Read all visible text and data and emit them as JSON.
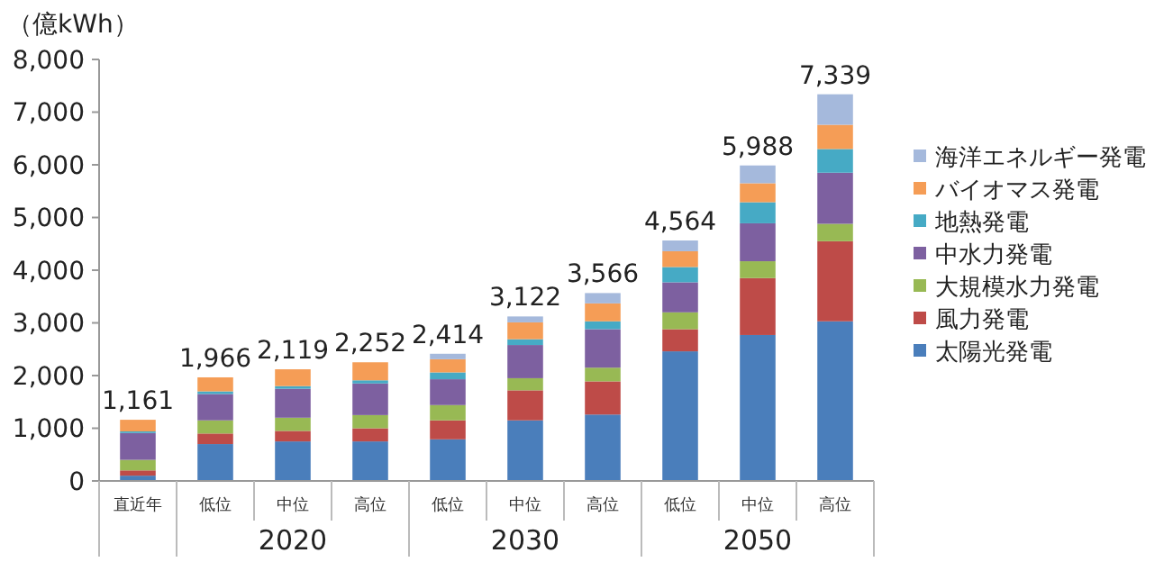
{
  "chart_data": {
    "type": "bar",
    "stacked": true,
    "ylabel": "（億kWh）",
    "categories": [
      "直近年",
      "低位",
      "中位",
      "高位",
      "低位",
      "中位",
      "高位",
      "低位",
      "中位",
      "高位"
    ],
    "series": [
      {
        "name": "太陽光発電",
        "color": "#4a7ebb",
        "values": [
          100,
          700,
          750,
          750,
          790,
          1150,
          1260,
          2460,
          2770,
          3030
        ]
      },
      {
        "name": "風力発電",
        "color": "#be4b48",
        "values": [
          100,
          200,
          200,
          250,
          360,
          570,
          630,
          420,
          1080,
          1520
        ]
      },
      {
        "name": "大規模水力発電",
        "color": "#98b954",
        "values": [
          200,
          250,
          250,
          250,
          290,
          230,
          260,
          320,
          320,
          330
        ]
      },
      {
        "name": "中水力発電",
        "color": "#7d60a0",
        "values": [
          510,
          500,
          550,
          600,
          490,
          630,
          730,
          570,
          720,
          970
        ]
      },
      {
        "name": "地熱発電",
        "color": "#46aac5",
        "values": [
          30,
          50,
          50,
          60,
          130,
          110,
          150,
          290,
          400,
          450
        ]
      },
      {
        "name": "バイオマス発電",
        "color": "#f59d56",
        "values": [
          221,
          266,
          319,
          342,
          250,
          320,
          340,
          300,
          360,
          460
        ]
      },
      {
        "name": "海洋エネルギー発電",
        "color": "#a5b9dc",
        "values": [
          0,
          null,
          null,
          null,
          104,
          112,
          196,
          204,
          338,
          579
        ]
      }
    ],
    "totals": [
      "1,161",
      "1,966",
      "2,119",
      "2,252",
      "2,414",
      "3,122",
      "3,566",
      "4,564",
      "5,988",
      "7,339"
    ],
    "ylim": [
      0,
      8000
    ],
    "yticks": [
      {
        "value": 0,
        "label": "0"
      },
      {
        "value": 1000,
        "label": "1,000"
      },
      {
        "value": 2000,
        "label": "2,000"
      },
      {
        "value": 3000,
        "label": "3,000"
      },
      {
        "value": 4000,
        "label": "4,000"
      },
      {
        "value": 5000,
        "label": "5,000"
      },
      {
        "value": 6000,
        "label": "6,000"
      },
      {
        "value": 7000,
        "label": "7,000"
      },
      {
        "value": 8000,
        "label": "8,000"
      }
    ],
    "legend": "right",
    "grid": false,
    "annotations": [
      "2020",
      "2030",
      "2050"
    ]
  }
}
